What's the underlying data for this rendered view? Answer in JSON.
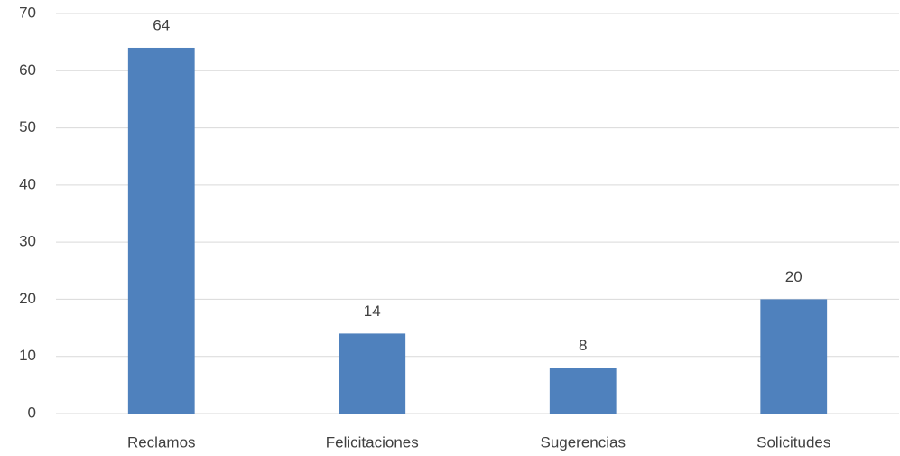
{
  "chart_data": {
    "type": "bar",
    "categories": [
      "Reclamos",
      "Felicitaciones",
      "Sugerencias",
      "Solicitudes"
    ],
    "values": [
      64,
      14,
      8,
      20
    ],
    "color": "#4f81bd",
    "ylim": [
      0,
      70
    ],
    "yticks": [
      0,
      10,
      20,
      30,
      40,
      50,
      60,
      70
    ],
    "grid": true,
    "data_labels": true
  }
}
